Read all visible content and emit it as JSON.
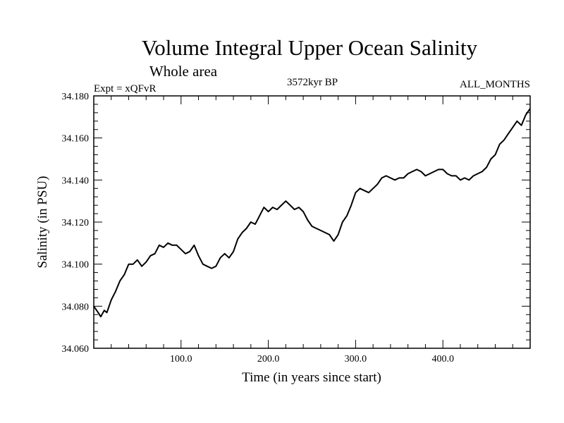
{
  "chart_data": {
    "type": "line",
    "title": "Volume Integral Upper Ocean Salinity",
    "subtitle": "Whole area",
    "left_label": "Expt = xQFvR",
    "center_label": "3572kyr BP",
    "right_label": "ALL_MONTHS",
    "xlabel": "Time (in years since start)",
    "ylabel": "Salinity (in PSU)",
    "xlim": [
      0,
      500
    ],
    "ylim": [
      34.06,
      34.18
    ],
    "x_ticks": [
      {
        "value": 100,
        "label": "100.0"
      },
      {
        "value": 200,
        "label": "200.0"
      },
      {
        "value": 300,
        "label": "300.0"
      },
      {
        "value": 400,
        "label": "400.0"
      }
    ],
    "y_ticks": [
      {
        "value": 34.06,
        "label": "34.060"
      },
      {
        "value": 34.08,
        "label": "34.080"
      },
      {
        "value": 34.1,
        "label": "34.100"
      },
      {
        "value": 34.12,
        "label": "34.120"
      },
      {
        "value": 34.14,
        "label": "34.140"
      },
      {
        "value": 34.16,
        "label": "34.160"
      },
      {
        "value": 34.18,
        "label": "34.180"
      }
    ],
    "series": [
      {
        "name": "salinity",
        "x": [
          0,
          5,
          8,
          12,
          15,
          20,
          25,
          30,
          35,
          40,
          45,
          50,
          55,
          60,
          65,
          70,
          75,
          80,
          85,
          90,
          95,
          100,
          105,
          110,
          115,
          120,
          125,
          130,
          135,
          140,
          145,
          150,
          155,
          160,
          165,
          170,
          175,
          180,
          185,
          190,
          195,
          200,
          205,
          210,
          215,
          220,
          225,
          230,
          235,
          240,
          245,
          250,
          255,
          260,
          265,
          270,
          275,
          280,
          285,
          290,
          295,
          300,
          305,
          310,
          315,
          320,
          325,
          330,
          335,
          340,
          345,
          350,
          355,
          360,
          365,
          370,
          375,
          380,
          385,
          390,
          395,
          400,
          405,
          410,
          415,
          420,
          425,
          430,
          435,
          440,
          445,
          450,
          455,
          460,
          465,
          470,
          475,
          480,
          485,
          490,
          495,
          500
        ],
        "values": [
          34.08,
          34.077,
          34.075,
          34.078,
          34.077,
          34.083,
          34.087,
          34.092,
          34.095,
          34.1,
          34.1,
          34.102,
          34.099,
          34.101,
          34.104,
          34.105,
          34.109,
          34.108,
          34.11,
          34.109,
          34.109,
          34.107,
          34.105,
          34.106,
          34.109,
          34.104,
          34.1,
          34.099,
          34.098,
          34.099,
          34.103,
          34.105,
          34.103,
          34.106,
          34.112,
          34.115,
          34.117,
          34.12,
          34.119,
          34.123,
          34.127,
          34.125,
          34.127,
          34.126,
          34.128,
          34.13,
          34.128,
          34.126,
          34.127,
          34.125,
          34.121,
          34.118,
          34.117,
          34.116,
          34.115,
          34.114,
          34.111,
          34.114,
          34.12,
          34.123,
          34.128,
          34.134,
          34.136,
          34.135,
          34.134,
          34.136,
          34.138,
          34.141,
          34.142,
          34.141,
          34.14,
          34.141,
          34.141,
          34.143,
          34.144,
          34.145,
          34.144,
          34.142,
          34.143,
          34.144,
          34.145,
          34.145,
          34.143,
          34.142,
          34.142,
          34.14,
          34.141,
          34.14,
          34.142,
          34.143,
          34.144,
          34.146,
          34.15,
          34.152,
          34.157,
          34.159,
          34.162,
          34.165,
          34.168,
          34.166,
          34.171,
          34.174
        ]
      }
    ]
  }
}
